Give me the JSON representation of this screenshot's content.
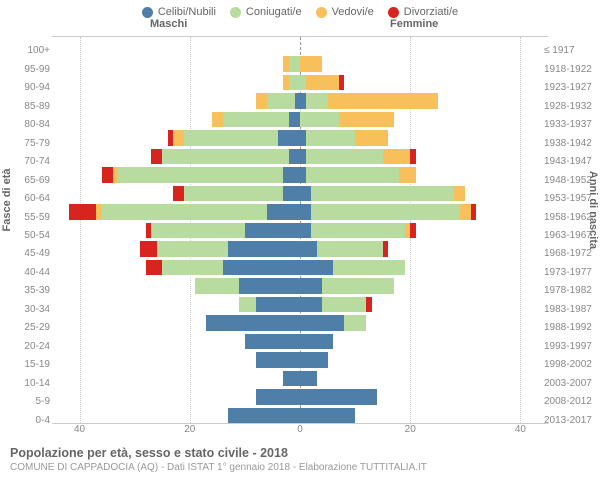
{
  "type": "population_pyramid",
  "legend": [
    {
      "label": "Celibi/Nubili",
      "color": "#4f7fa9"
    },
    {
      "label": "Coniugati/e",
      "color": "#b8dca0"
    },
    {
      "label": "Vedovi/e",
      "color": "#f7c05b"
    },
    {
      "label": "Divorziati/e",
      "color": "#d8241f"
    }
  ],
  "column_headers": {
    "male": "Maschi",
    "female": "Femmine"
  },
  "axis_left_title": "Fasce di età",
  "axis_right_title": "Anni di nascita",
  "xmax": 45,
  "xticks": [
    40,
    20,
    0,
    20,
    40
  ],
  "age_bands": [
    "0-4",
    "5-9",
    "10-14",
    "15-19",
    "20-24",
    "25-29",
    "30-34",
    "35-39",
    "40-44",
    "45-49",
    "50-54",
    "55-59",
    "60-64",
    "65-69",
    "70-74",
    "75-79",
    "80-84",
    "85-89",
    "90-94",
    "95-99",
    "100+"
  ],
  "birth_bands": [
    "2013-2017",
    "2008-2012",
    "2003-2007",
    "1998-2002",
    "1993-1997",
    "1988-1992",
    "1983-1987",
    "1978-1982",
    "1973-1977",
    "1968-1972",
    "1963-1967",
    "1958-1962",
    "1953-1957",
    "1948-1952",
    "1943-1947",
    "1938-1942",
    "1933-1937",
    "1928-1932",
    "1923-1927",
    "1918-1922",
    "≤ 1917"
  ],
  "colors": {
    "single": "#4f7fa9",
    "married": "#b8dca0",
    "widowed": "#f7c05b",
    "divorced": "#d8241f",
    "grid": "#cccccc",
    "center": "#999999",
    "bg": "#ffffff"
  },
  "rows": [
    {
      "m": {
        "single": 13,
        "married": 0,
        "widowed": 0,
        "divorced": 0
      },
      "f": {
        "single": 10,
        "married": 0,
        "widowed": 0,
        "divorced": 0
      }
    },
    {
      "m": {
        "single": 8,
        "married": 0,
        "widowed": 0,
        "divorced": 0
      },
      "f": {
        "single": 14,
        "married": 0,
        "widowed": 0,
        "divorced": 0
      }
    },
    {
      "m": {
        "single": 3,
        "married": 0,
        "widowed": 0,
        "divorced": 0
      },
      "f": {
        "single": 3,
        "married": 0,
        "widowed": 0,
        "divorced": 0
      }
    },
    {
      "m": {
        "single": 8,
        "married": 0,
        "widowed": 0,
        "divorced": 0
      },
      "f": {
        "single": 5,
        "married": 0,
        "widowed": 0,
        "divorced": 0
      }
    },
    {
      "m": {
        "single": 10,
        "married": 0,
        "widowed": 0,
        "divorced": 0
      },
      "f": {
        "single": 6,
        "married": 0,
        "widowed": 0,
        "divorced": 0
      }
    },
    {
      "m": {
        "single": 17,
        "married": 0,
        "widowed": 0,
        "divorced": 0
      },
      "f": {
        "single": 8,
        "married": 4,
        "widowed": 0,
        "divorced": 0
      }
    },
    {
      "m": {
        "single": 8,
        "married": 3,
        "widowed": 0,
        "divorced": 0
      },
      "f": {
        "single": 4,
        "married": 8,
        "widowed": 0,
        "divorced": 1
      }
    },
    {
      "m": {
        "single": 11,
        "married": 8,
        "widowed": 0,
        "divorced": 0
      },
      "f": {
        "single": 4,
        "married": 13,
        "widowed": 0,
        "divorced": 0
      }
    },
    {
      "m": {
        "single": 14,
        "married": 11,
        "widowed": 0,
        "divorced": 3
      },
      "f": {
        "single": 6,
        "married": 13,
        "widowed": 0,
        "divorced": 0
      }
    },
    {
      "m": {
        "single": 13,
        "married": 13,
        "widowed": 0,
        "divorced": 3
      },
      "f": {
        "single": 3,
        "married": 12,
        "widowed": 0,
        "divorced": 1
      }
    },
    {
      "m": {
        "single": 10,
        "married": 17,
        "widowed": 0,
        "divorced": 1
      },
      "f": {
        "single": 2,
        "married": 17,
        "widowed": 1,
        "divorced": 1
      }
    },
    {
      "m": {
        "single": 6,
        "married": 30,
        "widowed": 1,
        "divorced": 5
      },
      "f": {
        "single": 2,
        "married": 27,
        "widowed": 2,
        "divorced": 1
      }
    },
    {
      "m": {
        "single": 3,
        "married": 18,
        "widowed": 0,
        "divorced": 2
      },
      "f": {
        "single": 2,
        "married": 26,
        "widowed": 2,
        "divorced": 0
      }
    },
    {
      "m": {
        "single": 3,
        "married": 30,
        "widowed": 1,
        "divorced": 2
      },
      "f": {
        "single": 1,
        "married": 17,
        "widowed": 3,
        "divorced": 0
      }
    },
    {
      "m": {
        "single": 2,
        "married": 23,
        "widowed": 0,
        "divorced": 2
      },
      "f": {
        "single": 1,
        "married": 14,
        "widowed": 5,
        "divorced": 1
      }
    },
    {
      "m": {
        "single": 4,
        "married": 17,
        "widowed": 2,
        "divorced": 1
      },
      "f": {
        "single": 1,
        "married": 9,
        "widowed": 6,
        "divorced": 0
      }
    },
    {
      "m": {
        "single": 2,
        "married": 12,
        "widowed": 2,
        "divorced": 0
      },
      "f": {
        "single": 0,
        "married": 7,
        "widowed": 10,
        "divorced": 0
      }
    },
    {
      "m": {
        "single": 1,
        "married": 5,
        "widowed": 2,
        "divorced": 0
      },
      "f": {
        "single": 1,
        "married": 4,
        "widowed": 20,
        "divorced": 0
      }
    },
    {
      "m": {
        "single": 0,
        "married": 2,
        "widowed": 1,
        "divorced": 0
      },
      "f": {
        "single": 0,
        "married": 1,
        "widowed": 6,
        "divorced": 1
      }
    },
    {
      "m": {
        "single": 0,
        "married": 2,
        "widowed": 1,
        "divorced": 0
      },
      "f": {
        "single": 0,
        "married": 0,
        "widowed": 4,
        "divorced": 0
      }
    },
    {
      "m": {
        "single": 0,
        "married": 0,
        "widowed": 0,
        "divorced": 0
      },
      "f": {
        "single": 0,
        "married": 0,
        "widowed": 0,
        "divorced": 0
      }
    }
  ],
  "title": "Popolazione per età, sesso e stato civile - 2018",
  "subtitle": "COMUNE DI CAPPADOCIA (AQ) - Dati ISTAT 1° gennaio 2018 - Elaborazione TUTTITALIA.IT"
}
